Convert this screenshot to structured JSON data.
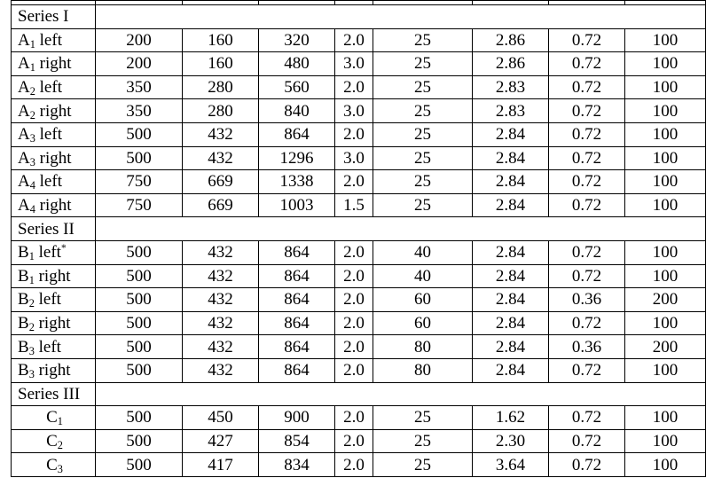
{
  "table": {
    "groups": [
      {
        "title": "Series I",
        "rows": [
          {
            "base": "A",
            "sub": "1",
            "suffix": " left",
            "mark": "",
            "align": "left",
            "values": [
              "200",
              "160",
              "320",
              "2.0",
              "25",
              "2.86",
              "0.72",
              "100"
            ]
          },
          {
            "base": "A",
            "sub": "1",
            "suffix": " right",
            "mark": "",
            "align": "left",
            "values": [
              "200",
              "160",
              "480",
              "3.0",
              "25",
              "2.86",
              "0.72",
              "100"
            ]
          },
          {
            "base": "A",
            "sub": "2",
            "suffix": " left",
            "mark": "",
            "align": "left",
            "values": [
              "350",
              "280",
              "560",
              "2.0",
              "25",
              "2.83",
              "0.72",
              "100"
            ]
          },
          {
            "base": "A",
            "sub": "2",
            "suffix": " right",
            "mark": "",
            "align": "left",
            "values": [
              "350",
              "280",
              "840",
              "3.0",
              "25",
              "2.83",
              "0.72",
              "100"
            ]
          },
          {
            "base": "A",
            "sub": "3",
            "suffix": " left",
            "mark": "",
            "align": "left",
            "values": [
              "500",
              "432",
              "864",
              "2.0",
              "25",
              "2.84",
              "0.72",
              "100"
            ]
          },
          {
            "base": "A",
            "sub": "3",
            "suffix": " right",
            "mark": "",
            "align": "left",
            "values": [
              "500",
              "432",
              "1296",
              "3.0",
              "25",
              "2.84",
              "0.72",
              "100"
            ]
          },
          {
            "base": "A",
            "sub": "4",
            "suffix": " left",
            "mark": "",
            "align": "left",
            "values": [
              "750",
              "669",
              "1338",
              "2.0",
              "25",
              "2.84",
              "0.72",
              "100"
            ]
          },
          {
            "base": "A",
            "sub": "4",
            "suffix": " right",
            "mark": "",
            "align": "left",
            "values": [
              "750",
              "669",
              "1003",
              "1.5",
              "25",
              "2.84",
              "0.72",
              "100"
            ]
          }
        ]
      },
      {
        "title": "Series II",
        "rows": [
          {
            "base": "B",
            "sub": "1",
            "suffix": " left",
            "mark": "*",
            "align": "left",
            "values": [
              "500",
              "432",
              "864",
              "2.0",
              "40",
              "2.84",
              "0.72",
              "100"
            ]
          },
          {
            "base": "B",
            "sub": "1",
            "suffix": " right",
            "mark": "",
            "align": "left",
            "values": [
              "500",
              "432",
              "864",
              "2.0",
              "40",
              "2.84",
              "0.72",
              "100"
            ]
          },
          {
            "base": "B",
            "sub": "2",
            "suffix": " left",
            "mark": "",
            "align": "left",
            "values": [
              "500",
              "432",
              "864",
              "2.0",
              "60",
              "2.84",
              "0.36",
              "200"
            ]
          },
          {
            "base": "B",
            "sub": "2",
            "suffix": " right",
            "mark": "",
            "align": "left",
            "values": [
              "500",
              "432",
              "864",
              "2.0",
              "60",
              "2.84",
              "0.72",
              "100"
            ]
          },
          {
            "base": "B",
            "sub": "3",
            "suffix": " left",
            "mark": "",
            "align": "left",
            "values": [
              "500",
              "432",
              "864",
              "2.0",
              "80",
              "2.84",
              "0.36",
              "200"
            ]
          },
          {
            "base": "B",
            "sub": "3",
            "suffix": " right",
            "mark": "",
            "align": "left",
            "values": [
              "500",
              "432",
              "864",
              "2.0",
              "80",
              "2.84",
              "0.72",
              "100"
            ]
          }
        ]
      },
      {
        "title": "Series III",
        "rows": [
          {
            "base": "C",
            "sub": "1",
            "suffix": "",
            "mark": "",
            "align": "center",
            "values": [
              "500",
              "450",
              "900",
              "2.0",
              "25",
              "1.62",
              "0.72",
              "100"
            ]
          },
          {
            "base": "C",
            "sub": "2",
            "suffix": "",
            "mark": "",
            "align": "center",
            "values": [
              "500",
              "427",
              "854",
              "2.0",
              "25",
              "2.30",
              "0.72",
              "100"
            ]
          },
          {
            "base": "C",
            "sub": "3",
            "suffix": "",
            "mark": "",
            "align": "center",
            "values": [
              "500",
              "417",
              "834",
              "2.0",
              "25",
              "3.64",
              "0.72",
              "100"
            ]
          }
        ]
      }
    ]
  }
}
